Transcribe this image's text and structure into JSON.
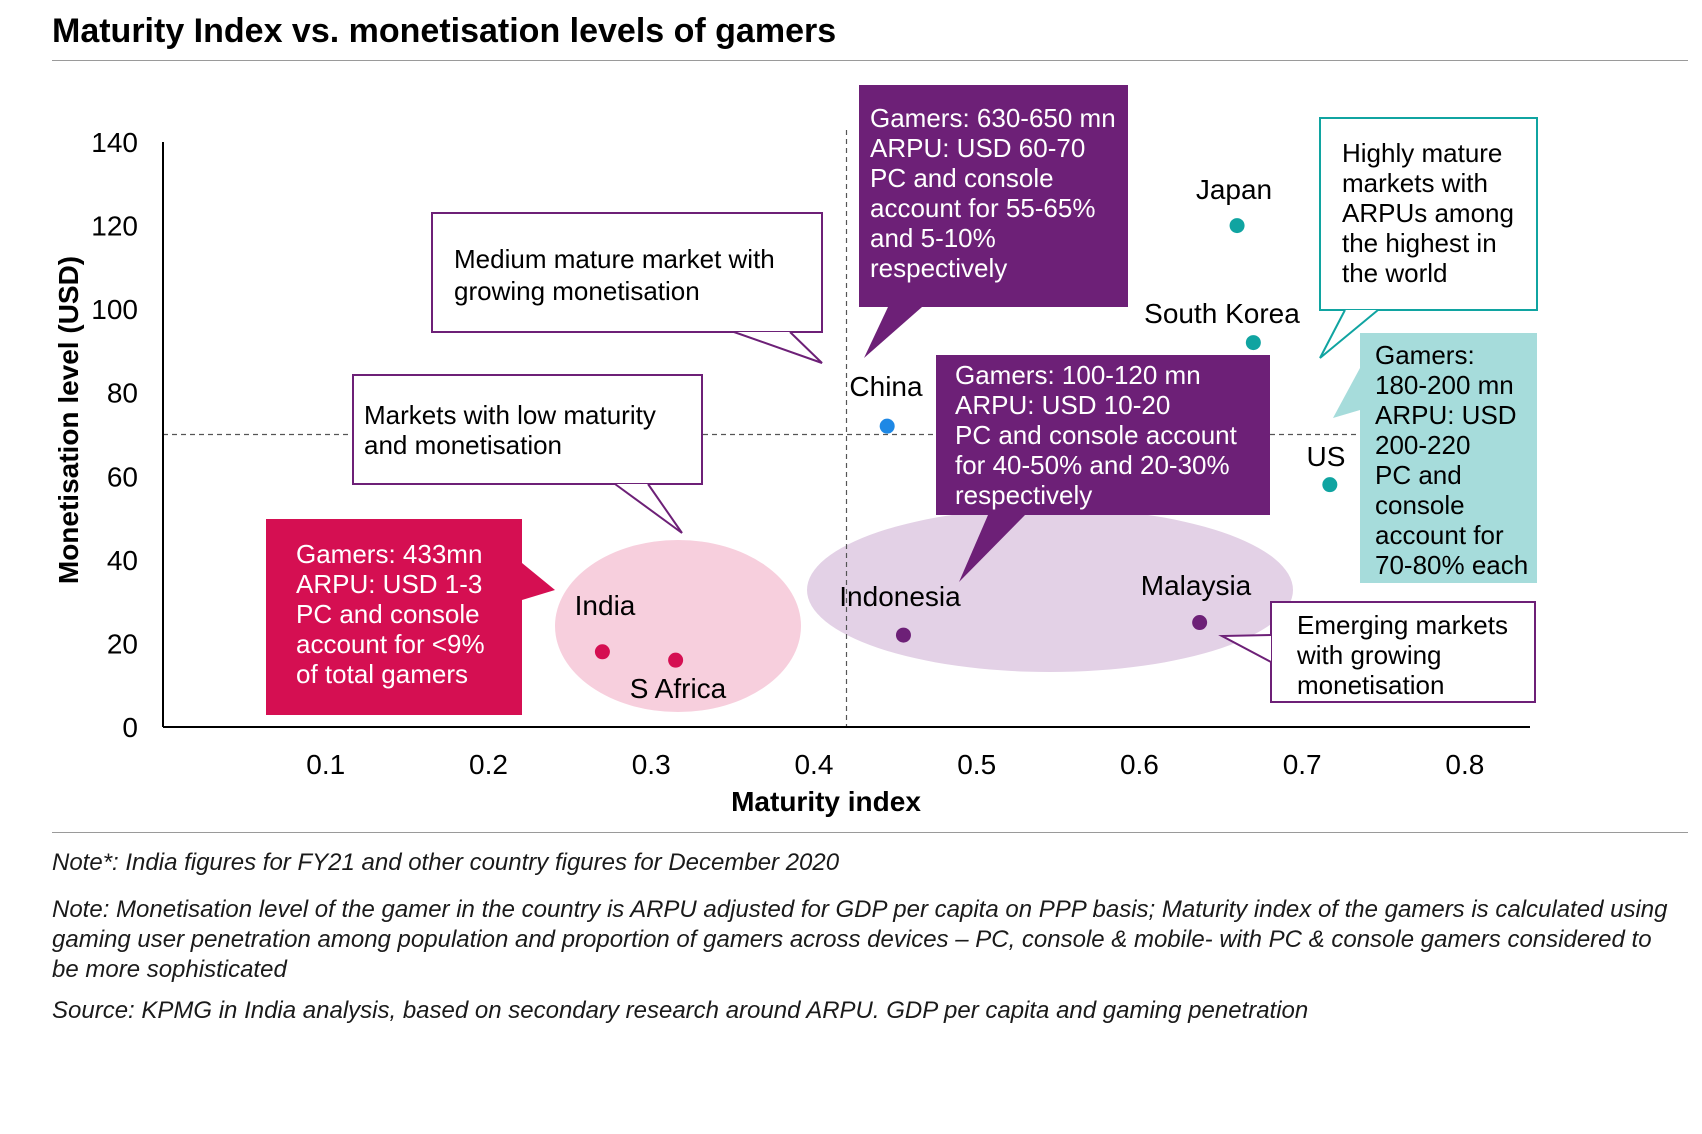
{
  "title": "Maturity Index vs. monetisation levels of gamers",
  "chart_data": {
    "type": "scatter",
    "xlabel": "Maturity index",
    "ylabel": "Monetisation level (USD)",
    "xlim": [
      0,
      0.84
    ],
    "ylim": [
      0,
      140
    ],
    "xticks": [
      0.1,
      0.2,
      0.3,
      0.4,
      0.5,
      0.6,
      0.7,
      0.8
    ],
    "yticks": [
      0,
      20,
      40,
      60,
      80,
      100,
      120,
      140
    ],
    "reference_lines": {
      "x": 0.42,
      "y": 70
    },
    "points": [
      {
        "label": "India",
        "x": 0.27,
        "y": 18,
        "color": "#d50f52"
      },
      {
        "label": "S Africa",
        "x": 0.315,
        "y": 16,
        "color": "#d50f52"
      },
      {
        "label": "China",
        "x": 0.445,
        "y": 72,
        "color": "#1e88e5"
      },
      {
        "label": "Indonesia",
        "x": 0.455,
        "y": 22,
        "color": "#6d2077"
      },
      {
        "label": "Malaysia",
        "x": 0.637,
        "y": 25,
        "color": "#6d2077"
      },
      {
        "label": "Japan",
        "x": 0.66,
        "y": 120,
        "color": "#10a4a1"
      },
      {
        "label": "South Korea",
        "x": 0.67,
        "y": 92,
        "color": "#10a4a1"
      },
      {
        "label": "US",
        "x": 0.717,
        "y": 58,
        "color": "#10a4a1"
      }
    ],
    "callouts": [
      {
        "text": [
          "Medium mature market with",
          "growing monetisation"
        ]
      },
      {
        "text": [
          "Markets with low maturity",
          "and monetisation"
        ]
      },
      {
        "text": [
          "Gamers: 630-650 mn",
          "ARPU: USD 60-70",
          "PC and console",
          "account for 55-65%",
          "and 5-10%",
          "respectively"
        ]
      },
      {
        "text": [
          "Gamers: 100-120 mn",
          "ARPU: USD 10-20",
          "PC and console account",
          "for 40-50% and 20-30%",
          "respectively"
        ]
      },
      {
        "text": [
          "Gamers: 433mn",
          "ARPU: USD 1-3",
          "PC and console",
          "account for <9%",
          "of total gamers"
        ]
      },
      {
        "text": [
          "Highly mature",
          "markets with",
          "ARPUs among",
          "the highest in",
          "the world"
        ]
      },
      {
        "text": [
          "Gamers:",
          "180-200 mn",
          "ARPU: USD",
          "200-220",
          "PC and",
          "console",
          "account for",
          "70-80% each"
        ]
      },
      {
        "text": [
          "Emerging markets",
          "with growing",
          "monetisation"
        ]
      }
    ],
    "colors": {
      "purple": "#6d2077",
      "magenta": "#d50f52",
      "teal": "#10a4a1",
      "light_teal": "#a6dcdb",
      "light_pink": "#f7cfdd",
      "light_purple": "#e3d1e6"
    }
  },
  "notes": [
    "Note*: India figures for FY21 and other country figures for December 2020",
    "Note: Monetisation level of the gamer in the country is ARPU adjusted for GDP per capita on PPP basis; Maturity index of the gamers is calculated using gaming user penetration among population and proportion of gamers across devices – PC, console & mobile- with PC & console gamers considered to be more sophisticated",
    "Source: KPMG in India analysis, based on secondary research around ARPU. GDP per capita and gaming penetration"
  ]
}
